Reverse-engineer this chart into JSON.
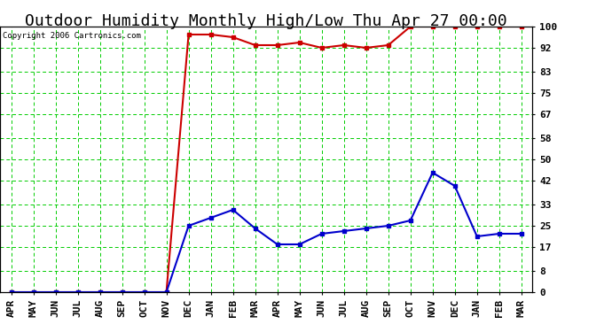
{
  "title": "Outdoor Humidity Monthly High/Low Thu Apr 27 00:00",
  "copyright": "Copyright 2006 Cartronics.com",
  "x_labels": [
    "APR",
    "MAY",
    "JUN",
    "JUL",
    "AUG",
    "SEP",
    "OCT",
    "NOV",
    "DEC",
    "JAN",
    "FEB",
    "MAR",
    "APR",
    "MAY",
    "JUN",
    "JUL",
    "AUG",
    "SEP",
    "OCT",
    "NOV",
    "DEC",
    "JAN",
    "FEB",
    "MAR"
  ],
  "high_values": [
    0,
    0,
    0,
    0,
    0,
    0,
    0,
    0,
    97,
    97,
    96,
    93,
    93,
    94,
    92,
    93,
    92,
    93,
    100,
    100,
    100,
    100,
    100,
    100
  ],
  "low_values": [
    0,
    0,
    0,
    0,
    0,
    0,
    0,
    0,
    25,
    28,
    31,
    24,
    18,
    18,
    22,
    23,
    24,
    25,
    27,
    45,
    40,
    21,
    22,
    22
  ],
  "high_color": "#cc0000",
  "low_color": "#0000cc",
  "bg_color": "#ffffff",
  "plot_bg_color": "#ffffff",
  "grid_color": "#00cc00",
  "y_ticks": [
    0,
    8,
    17,
    25,
    33,
    42,
    50,
    58,
    67,
    75,
    83,
    92,
    100
  ],
  "ylim": [
    0,
    100
  ],
  "title_fontsize": 13,
  "tick_fontsize": 8,
  "marker": "s",
  "markersize": 3.5,
  "linewidth": 1.5
}
